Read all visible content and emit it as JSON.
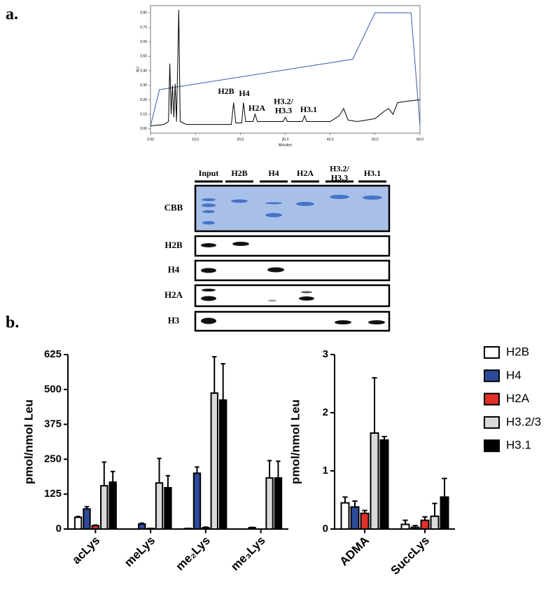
{
  "panel_labels": [
    "a.",
    "b."
  ],
  "blot": {
    "lanes": [
      "Input",
      "H2B",
      "H4",
      "H2A",
      "H3.2/\nH3.3",
      "H3.1"
    ],
    "rows": [
      "CBB",
      "H2B",
      "H4",
      "H2A",
      "H3"
    ]
  },
  "chart_data": [
    {
      "type": "line",
      "xlabel": "Minutes",
      "ylabel": "AU",
      "xlim": [
        0,
        60
      ],
      "ylim": [
        -0.03,
        0.85
      ],
      "xticks": [
        {
          "value": 0,
          "label": "0.00"
        },
        {
          "value": 10,
          "label": "10.0"
        },
        {
          "value": 20,
          "label": "20.0"
        },
        {
          "value": 30,
          "label": "30.0"
        },
        {
          "value": 40,
          "label": "40.0"
        },
        {
          "value": 50,
          "label": "50.0"
        },
        {
          "value": 60,
          "label": "60.0"
        }
      ],
      "yticks": [
        {
          "value": 0,
          "label": "0.00"
        },
        {
          "value": 0.1,
          "label": "0.10"
        },
        {
          "value": 0.2,
          "label": "0.20"
        },
        {
          "value": 0.3,
          "label": "0.30"
        },
        {
          "value": 0.4,
          "label": "0.40"
        },
        {
          "value": 0.5,
          "label": "0.50"
        },
        {
          "value": 0.6,
          "label": "0.60"
        },
        {
          "value": 0.7,
          "label": "0.70"
        },
        {
          "value": 0.8,
          "label": "0.80"
        }
      ],
      "annotations": [
        "H2B",
        "H4",
        "H2A",
        "H3.2/\nH3.3",
        "H3.1"
      ],
      "series": [
        {
          "color": "#3b5aa8",
          "x": [
            0,
            2,
            45,
            50,
            58,
            60
          ],
          "values": [
            0.02,
            0.27,
            0.48,
            0.8,
            0.8,
            0.02
          ]
        },
        {
          "color": "#000000",
          "x": [
            0,
            3,
            4,
            4.3,
            4.6,
            4.9,
            5.2,
            5.5,
            5.8,
            6.3,
            6.6,
            8,
            18,
            18.5,
            19,
            20.3,
            20.7,
            21.2,
            22.8,
            23.3,
            23.8,
            29.5,
            30,
            30.5,
            33.8,
            34.3,
            34.8,
            40,
            42,
            43,
            44,
            46,
            50,
            52,
            53,
            54,
            55,
            57,
            60
          ],
          "values": [
            0.02,
            0.03,
            0.05,
            0.45,
            0.1,
            0.3,
            0.08,
            0.31,
            0.05,
            0.82,
            0.05,
            0.03,
            0.03,
            0.18,
            0.04,
            0.04,
            0.18,
            0.05,
            0.05,
            0.1,
            0.05,
            0.05,
            0.08,
            0.05,
            0.05,
            0.09,
            0.05,
            0.05,
            0.09,
            0.14,
            0.06,
            0.05,
            0.07,
            0.12,
            0.14,
            0.1,
            0.18,
            0.19,
            0.2
          ]
        }
      ]
    },
    {
      "type": "bar",
      "ylabel": "pmol/nmol Leu",
      "categories": [
        "acLys",
        "meLys",
        "me₂Lys",
        "me₃Lys"
      ],
      "ylim": [
        0,
        625
      ],
      "yticks": [
        0,
        125,
        250,
        375,
        500,
        625
      ],
      "series": [
        {
          "color": "#ffffff",
          "values": [
            42,
            0,
            2,
            0
          ],
          "errors": [
            3,
            0,
            0,
            0
          ]
        },
        {
          "color": "#2e4a9a",
          "values": [
            72,
            18,
            200,
            5
          ],
          "errors": [
            8,
            3,
            22,
            1
          ]
        },
        {
          "color": "#e0302a",
          "values": [
            12,
            2,
            5,
            0
          ],
          "errors": [
            2,
            0,
            2,
            0
          ]
        },
        {
          "color": "#d9d9d9",
          "values": [
            155,
            165,
            487,
            183
          ],
          "errors": [
            85,
            88,
            130,
            62
          ]
        },
        {
          "color": "#000000",
          "values": [
            168,
            148,
            462,
            183
          ],
          "errors": [
            38,
            43,
            130,
            60
          ]
        }
      ]
    },
    {
      "type": "bar",
      "ylabel": "pmol/nmol Leu",
      "categories": [
        "ADMA",
        "SuccLys"
      ],
      "ylim": [
        0,
        3
      ],
      "yticks": [
        0,
        1,
        2,
        3
      ],
      "legend": "right",
      "series": [
        {
          "name": "H2B",
          "color": "#ffffff",
          "values": [
            0.45,
            0.08
          ],
          "errors": [
            0.1,
            0.07
          ]
        },
        {
          "name": "H4",
          "color": "#2e4a9a",
          "values": [
            0.38,
            0.03
          ],
          "errors": [
            0.1,
            0.03
          ]
        },
        {
          "name": "H2A",
          "color": "#e0302a",
          "values": [
            0.27,
            0.15
          ],
          "errors": [
            0.05,
            0.06
          ]
        },
        {
          "name": "H3.2/3",
          "color": "#d9d9d9",
          "values": [
            1.65,
            0.22
          ],
          "errors": [
            0.95,
            0.22
          ]
        },
        {
          "name": "H3.1",
          "color": "#000000",
          "values": [
            1.53,
            0.55
          ],
          "errors": [
            0.06,
            0.32
          ]
        }
      ]
    }
  ]
}
